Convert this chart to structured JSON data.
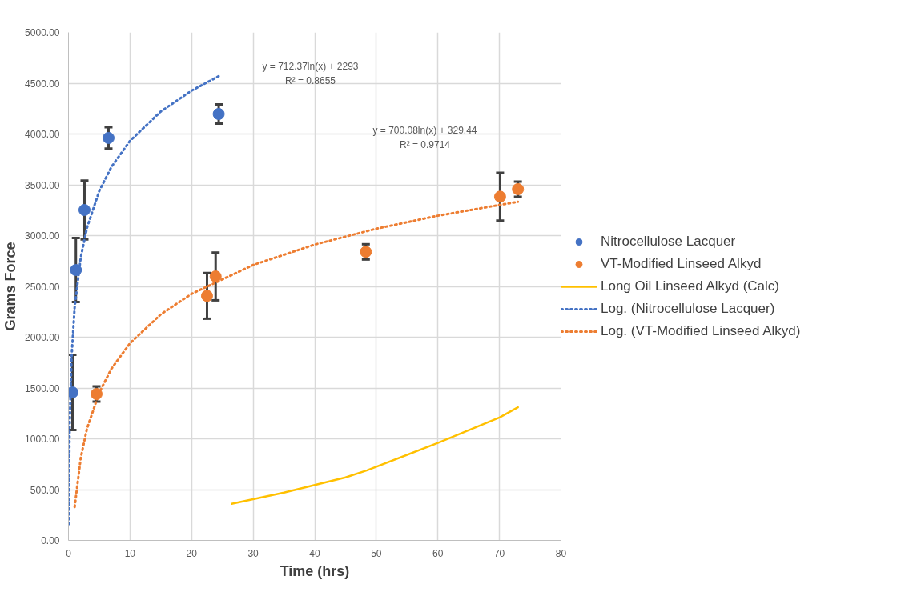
{
  "chart_data": {
    "type": "scatter",
    "xlabel": "Time (hrs)",
    "ylabel": "Grams Force",
    "xlim": [
      0,
      80
    ],
    "xticks": [
      0,
      10,
      20,
      30,
      40,
      50,
      60,
      70,
      80
    ],
    "ylim": [
      0,
      5000
    ],
    "yticks": [
      {
        "value": 0,
        "label": "0.00"
      },
      {
        "value": 500,
        "label": "500.00"
      },
      {
        "value": 1000,
        "label": "1000.00"
      },
      {
        "value": 1500,
        "label": "1500.00"
      },
      {
        "value": 2000,
        "label": "2000.00"
      },
      {
        "value": 2500,
        "label": "2500.00"
      },
      {
        "value": 3000,
        "label": "3000.00"
      },
      {
        "value": 3500,
        "label": "3500.00"
      },
      {
        "value": 4000,
        "label": "4000.00"
      },
      {
        "value": 4500,
        "label": "4500.00"
      },
      {
        "value": 5000,
        "label": "5000.00"
      }
    ],
    "grid": true,
    "legend": "right",
    "series": [
      {
        "name": "Nitrocellulose Lacquer",
        "marker": "circle",
        "color": "#4472c4",
        "x": [
          0.65,
          1.2,
          2.6,
          6.5,
          24.4
        ],
        "values": [
          1457,
          2661,
          3252,
          3961,
          4197
        ],
        "errors": [
          370,
          315,
          290,
          105,
          95
        ]
      },
      {
        "name": "VT-Modified Linseed Alkyd",
        "marker": "circle",
        "color": "#ed7d31",
        "x": [
          4.55,
          22.5,
          23.9,
          48.3,
          70.1,
          73
        ],
        "values": [
          1441,
          2407,
          2598,
          2840,
          3383,
          3457
        ],
        "errors": [
          75,
          225,
          235,
          75,
          236,
          75
        ]
      },
      {
        "name": "Long Oil Linseed Alkyd (Calc)",
        "type": "line",
        "line_style": "solid",
        "color": "#ffc000",
        "x": [
          26.5,
          35,
          45,
          48.5,
          60,
          70,
          73
        ],
        "values": [
          360,
          470,
          620,
          690,
          960,
          1210,
          1310
        ]
      },
      {
        "name": "Log. (Nitrocellulose Lacquer)",
        "type": "line",
        "line_style": "dotted",
        "color": "#4472c4",
        "x": [
          0.05,
          0.1,
          0.2,
          0.5,
          1,
          2,
          3,
          5,
          7,
          10,
          15,
          20,
          24.4
        ],
        "values": [
          159,
          653,
          1147,
          1799,
          2293,
          2787,
          3076,
          3440,
          3679,
          3933,
          4222,
          4427,
          4569
        ]
      },
      {
        "name": "Log. (VT-Modified Linseed Alkyd)",
        "type": "line",
        "line_style": "dotted",
        "color": "#ed7d31",
        "x": [
          1,
          2,
          3,
          5,
          7,
          10,
          15,
          20,
          30,
          40,
          50,
          60,
          73
        ],
        "values": [
          329,
          815,
          1099,
          1456,
          1692,
          1941,
          2225,
          2427,
          2711,
          2912,
          3068,
          3196,
          3333
        ]
      }
    ],
    "annotations": [
      "y = 712.37ln(x) + 2293",
      "R² = 0.8655",
      "y = 700.08ln(x) + 329.44",
      "R² = 0.9714"
    ]
  }
}
